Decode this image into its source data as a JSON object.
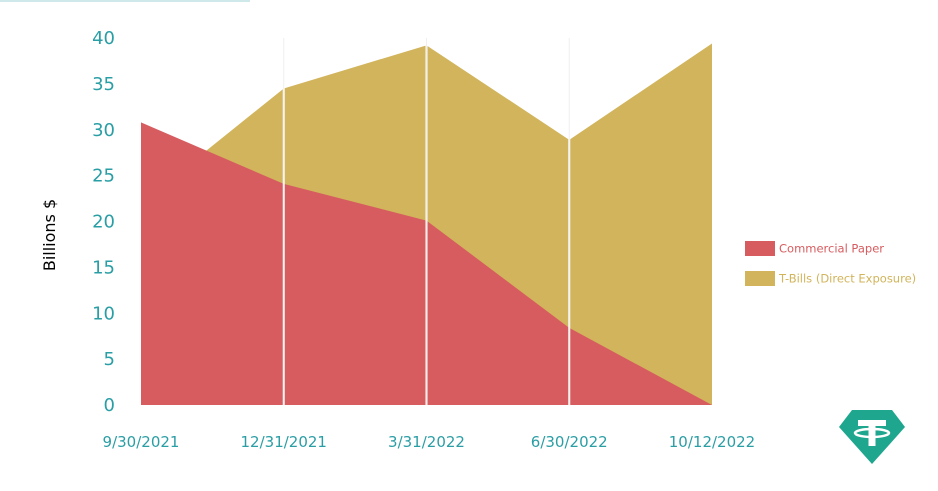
{
  "chart_data": {
    "type": "area",
    "stacking": "none",
    "x": [
      "9/30/2021",
      "12/31/2021",
      "3/31/2022",
      "6/30/2022",
      "10/12/2022"
    ],
    "ylabel": "Billions $",
    "ylim": [
      0,
      40
    ],
    "yticks": [
      0,
      5,
      10,
      15,
      20,
      25,
      30,
      35,
      40
    ],
    "series": [
      {
        "name": "T-Bills (Direct Exposure)",
        "values": [
          22,
          34.5,
          39.2,
          28.9,
          39.4
        ],
        "color": "#d1b45b"
      },
      {
        "name": "Commercial Paper",
        "values": [
          30.8,
          24.1,
          20.1,
          8.4,
          0
        ],
        "color": "#d75c5f"
      }
    ],
    "legend_position": "right",
    "grid": "vertical",
    "axis_text_color": "#2a9ea5"
  },
  "logo": {
    "name": "tether-logo",
    "color": "#1ea68e"
  }
}
